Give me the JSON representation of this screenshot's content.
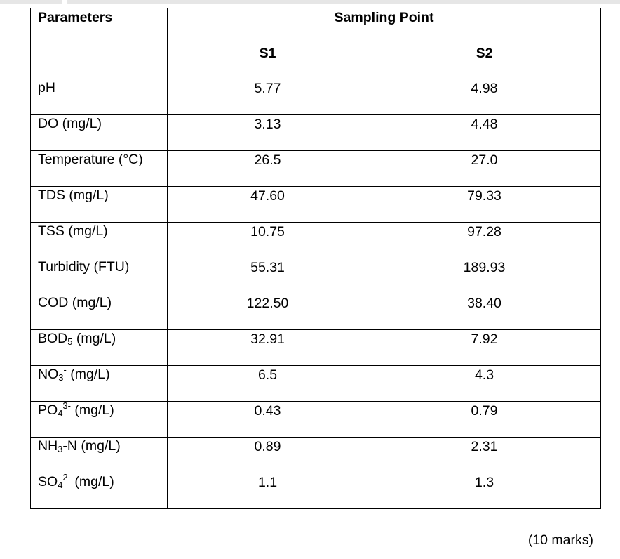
{
  "table": {
    "header": {
      "parameters": "Parameters",
      "sampling_point": "Sampling Point",
      "s1": "S1",
      "s2": "S2"
    },
    "rows": [
      {
        "param": "pH",
        "s1": "5.77",
        "s2": "4.98"
      },
      {
        "param": "DO (mg/L)",
        "s1": "3.13",
        "s2": "4.48"
      },
      {
        "param": "Temperature (°C)",
        "s1": "26.5",
        "s2": "27.0"
      },
      {
        "param": "TDS (mg/L)",
        "s1": "47.60",
        "s2": "79.33"
      },
      {
        "param": "TSS (mg/L)",
        "s1": "10.75",
        "s2": "97.28"
      },
      {
        "param": "Turbidity (FTU)",
        "s1": "55.31",
        "s2": "189.93"
      },
      {
        "param": "COD (mg/L)",
        "s1": "122.50",
        "s2": "38.40"
      },
      {
        "param_base": "BOD",
        "param_sub": "5",
        "param_rest": " (mg/L)",
        "s1": "32.91",
        "s2": "7.92"
      },
      {
        "param_base": "NO",
        "param_sub": "3",
        "param_sup": "-",
        "param_rest": " (mg/L)",
        "s1": "6.5",
        "s2": "4.3"
      },
      {
        "param_base": "PO",
        "param_sub": "4",
        "param_sup": "3-",
        "param_rest": " (mg/L)",
        "s1": "0.43",
        "s2": "0.79"
      },
      {
        "param_base": "NH",
        "param_sub": "3",
        "param_rest": "-N (mg/L)",
        "s1": "0.89",
        "s2": "2.31"
      },
      {
        "param_base": "SO",
        "param_sub": "4",
        "param_sup": "2-",
        "param_rest": " (mg/L)",
        "s1": "1.1",
        "s2": "1.3"
      }
    ]
  },
  "marks": "(10 marks)"
}
